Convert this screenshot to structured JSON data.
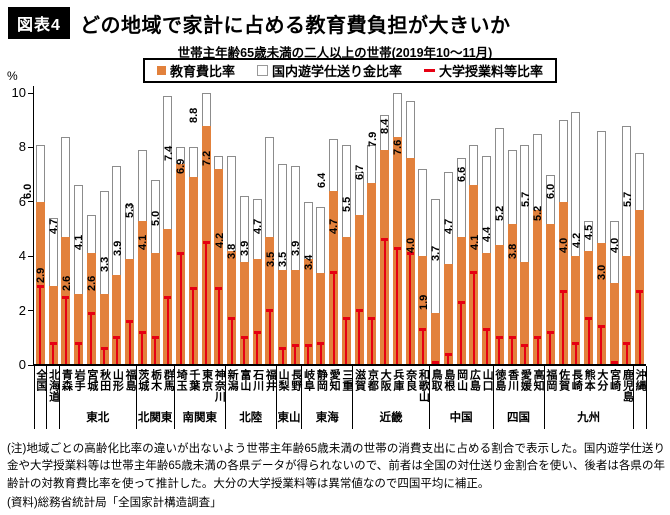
{
  "header": {
    "badge": "図表4",
    "title": "どの地域で家計に占める教育費負担が大きいか"
  },
  "subtitle": "世帯主年齢65歳未満の二人以上の世帯(2019年10〜11月)",
  "legend": [
    {
      "label": "教育費比率",
      "swatch": "orange-square"
    },
    {
      "label": "国内遊学仕送り金比率",
      "swatch": "white-square"
    },
    {
      "label": "大学授業料等比率",
      "swatch": "red-dash"
    }
  ],
  "colors": {
    "education": "#e2813c",
    "remittance": "#ffffff",
    "tuition": "#e60012",
    "bar_border": "#8c8c8c",
    "axis": "#000000"
  },
  "y_axis": {
    "unit": "%",
    "ticks": [
      0,
      2,
      4,
      6,
      8,
      10
    ],
    "max": 10
  },
  "chart_data": {
    "type": "bar",
    "stacked": true,
    "title": "世帯主年齢65歳未満の二人以上の世帯(2019年10〜11月)",
    "ylim": [
      0,
      10
    ],
    "series_names": [
      "教育費比率",
      "国内遊学仕送り金比率",
      "大学授業料等比率"
    ],
    "series_note": "education=orange stacked bottom, remittance=white stacked top (total=education+remittance), tuition=red tick marker",
    "groups": [
      {
        "region": "",
        "prefs": [
          {
            "name": "全国",
            "education": 6.0,
            "remittance": 2.1,
            "total": 8.1,
            "tuition": 2.9
          }
        ]
      },
      {
        "region": "",
        "prefs": [
          {
            "name": "北海道",
            "education": 2.9,
            "remittance": 2.5,
            "total": 5.4,
            "tuition": 0.8
          }
        ]
      },
      {
        "region": "東北",
        "prefs": [
          {
            "name": "青森",
            "education": 4.7,
            "remittance": 3.7,
            "total": 8.4,
            "tuition": 2.5
          },
          {
            "name": "岩手",
            "education": 2.6,
            "remittance": 4.0,
            "total": 6.6,
            "tuition": 0.8
          },
          {
            "name": "宮城",
            "education": 4.1,
            "remittance": 1.4,
            "total": 5.5,
            "tuition": 1.9
          },
          {
            "name": "秋田",
            "education": 2.6,
            "remittance": 3.8,
            "total": 6.4,
            "tuition": 0.6
          },
          {
            "name": "山形",
            "education": 3.3,
            "remittance": 4.0,
            "total": 7.3,
            "tuition": 1.0
          },
          {
            "name": "福島",
            "education": 3.9,
            "remittance": 2.0,
            "total": 5.9,
            "tuition": 1.6
          }
        ]
      },
      {
        "region": "北関東",
        "prefs": [
          {
            "name": "茨城",
            "education": 5.3,
            "remittance": 2.6,
            "total": 7.9,
            "tuition": 1.2
          },
          {
            "name": "栃木",
            "education": 4.1,
            "remittance": 2.7,
            "total": 6.8,
            "tuition": 1.0
          },
          {
            "name": "群馬",
            "education": 5.0,
            "remittance": 4.9,
            "total": 9.9,
            "tuition": 2.5
          }
        ]
      },
      {
        "region": "南関東",
        "prefs": [
          {
            "name": "埼玉",
            "education": 7.4,
            "remittance": 0.6,
            "total": 8.0,
            "tuition": 4.1
          },
          {
            "name": "千葉",
            "education": 6.9,
            "remittance": 1.1,
            "total": 8.0,
            "tuition": 2.8
          },
          {
            "name": "東京",
            "education": 8.8,
            "remittance": 1.2,
            "total": 10.0,
            "tuition": 4.5
          },
          {
            "name": "神奈川",
            "education": 7.2,
            "remittance": 0.5,
            "total": 7.7,
            "tuition": 2.8
          }
        ]
      },
      {
        "region": "北陸",
        "prefs": [
          {
            "name": "新潟",
            "education": 4.2,
            "remittance": 3.5,
            "total": 7.7,
            "tuition": 1.7
          },
          {
            "name": "富山",
            "education": 3.8,
            "remittance": 2.4,
            "total": 6.2,
            "tuition": 1.0
          },
          {
            "name": "石川",
            "education": 3.9,
            "remittance": 2.2,
            "total": 6.1,
            "tuition": 1.2
          },
          {
            "name": "福井",
            "education": 4.7,
            "remittance": 3.7,
            "total": 8.4,
            "tuition": 2.0
          }
        ]
      },
      {
        "region": "東山",
        "prefs": [
          {
            "name": "山梨",
            "education": 3.5,
            "remittance": 3.9,
            "total": 7.4,
            "tuition": 0.6
          },
          {
            "name": "長野",
            "education": 3.5,
            "remittance": 3.8,
            "total": 7.3,
            "tuition": 0.7
          }
        ]
      },
      {
        "region": "東海",
        "prefs": [
          {
            "name": "岐阜",
            "education": 3.9,
            "remittance": 2.1,
            "total": 6.0,
            "tuition": 0.7
          },
          {
            "name": "静岡",
            "education": 3.4,
            "remittance": 2.4,
            "total": 5.8,
            "tuition": 0.8
          },
          {
            "name": "愛知",
            "education": 6.4,
            "remittance": 1.9,
            "total": 8.3,
            "tuition": 3.4
          },
          {
            "name": "三重",
            "education": 4.7,
            "remittance": 3.4,
            "total": 8.1,
            "tuition": 1.7
          }
        ]
      },
      {
        "region": "近畿",
        "prefs": [
          {
            "name": "滋賀",
            "education": 5.5,
            "remittance": 1.6,
            "total": 7.1,
            "tuition": 2.0
          },
          {
            "name": "京都",
            "education": 6.7,
            "remittance": 1.4,
            "total": 8.1,
            "tuition": 1.7
          },
          {
            "name": "大阪",
            "education": 7.9,
            "remittance": 1.3,
            "total": 9.2,
            "tuition": 4.6
          },
          {
            "name": "兵庫",
            "education": 8.4,
            "remittance": 1.6,
            "total": 10.0,
            "tuition": 4.3
          },
          {
            "name": "奈良",
            "education": 7.6,
            "remittance": 2.1,
            "total": 9.7,
            "tuition": 4.1
          },
          {
            "name": "和歌山",
            "education": 4.0,
            "remittance": 3.2,
            "total": 7.2,
            "tuition": 1.3
          }
        ]
      },
      {
        "region": "中国",
        "prefs": [
          {
            "name": "鳥取",
            "education": 1.9,
            "remittance": 4.2,
            "total": 6.1,
            "tuition": 0.1
          },
          {
            "name": "島根",
            "education": 3.7,
            "remittance": 3.4,
            "total": 7.1,
            "tuition": 0.4
          },
          {
            "name": "岡山",
            "education": 4.7,
            "remittance": 2.9,
            "total": 7.6,
            "tuition": 2.3
          },
          {
            "name": "広島",
            "education": 6.6,
            "remittance": 1.5,
            "total": 8.1,
            "tuition": 3.4
          },
          {
            "name": "山口",
            "education": 4.1,
            "remittance": 3.6,
            "total": 7.7,
            "tuition": 1.3
          }
        ]
      },
      {
        "region": "四国",
        "prefs": [
          {
            "name": "徳島",
            "education": 4.4,
            "remittance": 4.3,
            "total": 8.7,
            "tuition": 1.0
          },
          {
            "name": "香川",
            "education": 5.2,
            "remittance": 2.7,
            "total": 7.9,
            "tuition": 1.0
          },
          {
            "name": "愛媛",
            "education": 3.8,
            "remittance": 4.3,
            "total": 8.1,
            "tuition": 0.7
          },
          {
            "name": "高知",
            "education": 5.7,
            "remittance": 2.8,
            "total": 8.5,
            "tuition": 1.0
          }
        ]
      },
      {
        "region": "九州",
        "prefs": [
          {
            "name": "福岡",
            "education": 5.2,
            "remittance": 1.8,
            "total": 7.0,
            "tuition": 1.2
          },
          {
            "name": "佐賀",
            "education": 6.0,
            "remittance": 3.0,
            "total": 9.0,
            "tuition": 2.7
          },
          {
            "name": "長崎",
            "education": 4.0,
            "remittance": 5.3,
            "total": 9.3,
            "tuition": 0.8
          },
          {
            "name": "熊本",
            "education": 4.2,
            "remittance": 1.1,
            "total": 5.3,
            "tuition": 1.7
          },
          {
            "name": "大分",
            "education": 4.5,
            "remittance": 4.1,
            "total": 8.6,
            "tuition": 1.4
          },
          {
            "name": "宮崎",
            "education": 3.0,
            "remittance": 2.3,
            "total": 5.3,
            "tuition": 0.1
          },
          {
            "name": "鹿児島",
            "education": 4.0,
            "remittance": 4.8,
            "total": 8.8,
            "tuition": 0.8
          }
        ]
      },
      {
        "region": "",
        "prefs": [
          {
            "name": "沖縄",
            "education": 5.7,
            "remittance": 2.1,
            "total": 7.8,
            "tuition": 2.7
          }
        ]
      }
    ]
  },
  "notes": {
    "note": "(注)地域ごとの高齢化比率の違いが出ないよう世帯主年齢65歳未満の世帯の消費支出に占める割合で表示した。国内遊学仕送り金や大学授業料等は世帯主年齢65歳未満の各県データが得られないので、前者は全国の対仕送り金割合を使い、後者は各県の年齢計の対教育費比率を使って推計した。大分の大学授業料等は異常値なので四国平均に補正。",
    "source": "(資料)総務省統計局「全国家計構造調査」"
  }
}
